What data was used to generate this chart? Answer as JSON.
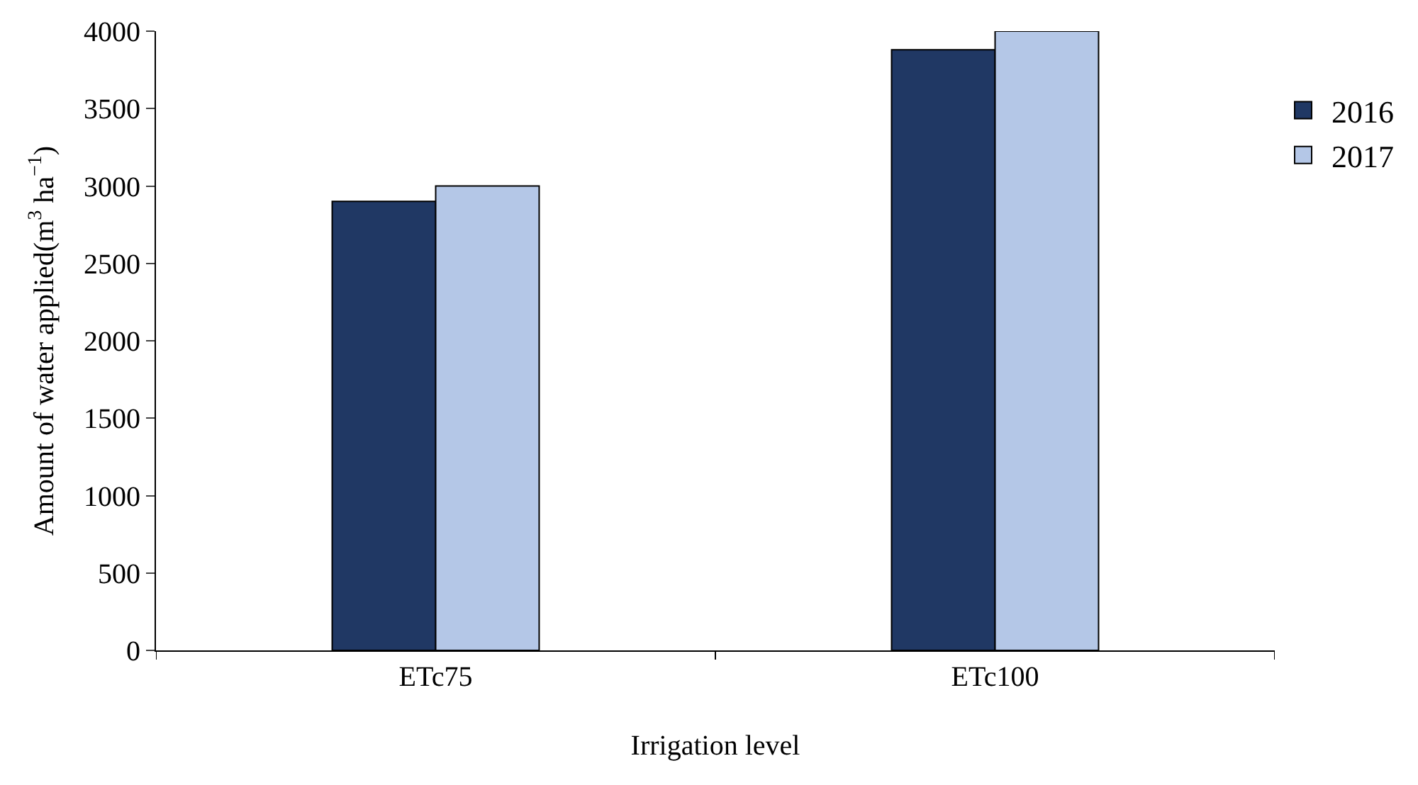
{
  "chart_data": {
    "type": "bar",
    "xlabel": "Irrigation level",
    "ylabel": "Amount of water applied(m$^{3}$ ha$^{−1}$)",
    "categories": [
      "ETc75",
      "ETc100"
    ],
    "series": [
      {
        "name": "2016",
        "color": "#203864",
        "values": [
          2900,
          3880
        ]
      },
      {
        "name": "2017",
        "color": "#b4c7e7",
        "values": [
          3000,
          4000
        ]
      }
    ],
    "ylim": [
      0,
      4000
    ],
    "yticks": [
      0,
      500,
      1000,
      1500,
      2000,
      2500,
      3000,
      3500,
      4000
    ],
    "legend": "top right"
  }
}
